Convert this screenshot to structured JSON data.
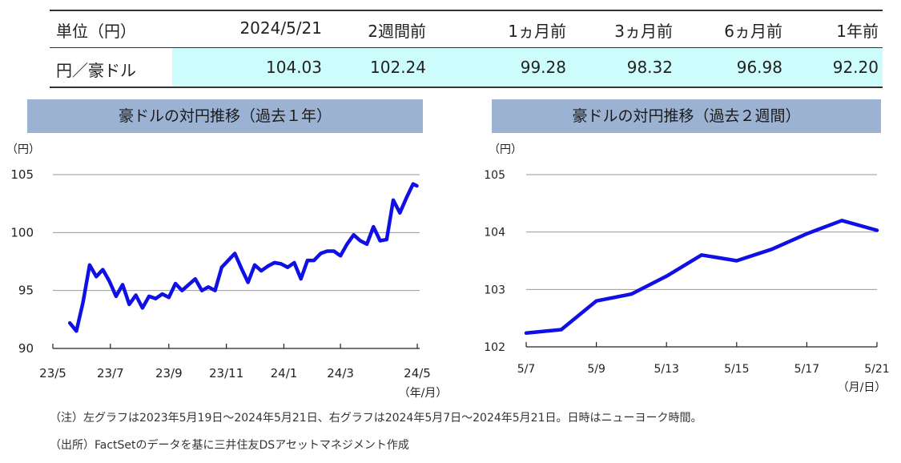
{
  "table": {
    "headers": [
      "単位（円）",
      "2024/5/21",
      "2週間前",
      "1ヵ月前",
      "3ヵ月前",
      "6ヵ月前",
      "1年前"
    ],
    "row_label": "円／豪ドル",
    "values": [
      "104.03",
      "102.24",
      "99.28",
      "98.32",
      "96.98",
      "92.20"
    ]
  },
  "colors": {
    "series": "#1010e6",
    "banner": "#9cb2d3",
    "highlight": "#ccfcfc",
    "grid": "#9a9a9a"
  },
  "chart_data": [
    {
      "type": "line",
      "title": "豪ドルの対円推移（過去１年）",
      "yunit": "（円）",
      "xunit": "（年/月）",
      "ylim": [
        90,
        105
      ],
      "yticks": [
        "90",
        "95",
        "100",
        "105"
      ],
      "xticks": [
        "23/5",
        "23/7",
        "23/9",
        "23/11",
        "24/1",
        "24/3",
        "24/5"
      ],
      "grid": true,
      "series": [
        {
          "x": [
            "2023-05-19",
            "2023-05-26",
            "2023-06-02",
            "2023-06-09",
            "2023-06-16",
            "2023-06-23",
            "2023-06-30",
            "2023-07-07",
            "2023-07-14",
            "2023-07-21",
            "2023-07-28",
            "2023-08-04",
            "2023-08-11",
            "2023-08-18",
            "2023-08-25",
            "2023-09-01",
            "2023-09-08",
            "2023-09-15",
            "2023-09-22",
            "2023-09-29",
            "2023-10-06",
            "2023-10-13",
            "2023-10-20",
            "2023-10-27",
            "2023-11-03",
            "2023-11-10",
            "2023-11-17",
            "2023-11-24",
            "2023-12-01",
            "2023-12-08",
            "2023-12-15",
            "2023-12-22",
            "2023-12-29",
            "2024-01-05",
            "2024-01-12",
            "2024-01-19",
            "2024-01-26",
            "2024-02-02",
            "2024-02-09",
            "2024-02-16",
            "2024-02-23",
            "2024-03-01",
            "2024-03-08",
            "2024-03-15",
            "2024-03-22",
            "2024-03-29",
            "2024-04-05",
            "2024-04-12",
            "2024-04-19",
            "2024-04-26",
            "2024-05-03",
            "2024-05-10",
            "2024-05-17",
            "2024-05-21"
          ],
          "values": [
            92.2,
            91.5,
            94.0,
            97.2,
            96.2,
            96.8,
            95.8,
            94.5,
            95.5,
            93.8,
            94.6,
            93.5,
            94.5,
            94.3,
            94.7,
            94.4,
            95.6,
            95.0,
            95.5,
            96.0,
            95.0,
            95.3,
            95.0,
            97.0,
            97.6,
            98.2,
            96.9,
            95.7,
            97.2,
            96.7,
            97.1,
            97.4,
            97.3,
            97.0,
            97.4,
            96.0,
            97.6,
            97.6,
            98.2,
            98.4,
            98.4,
            98.0,
            99.0,
            99.8,
            99.3,
            99.0,
            100.5,
            99.3,
            99.4,
            102.8,
            101.7,
            103.0,
            104.2,
            104.03
          ]
        }
      ]
    },
    {
      "type": "line",
      "title": "豪ドルの対円推移（過去２週間）",
      "yunit": "（円）",
      "xunit": "（月/日）",
      "ylim": [
        102,
        105
      ],
      "yticks": [
        "102",
        "103",
        "104",
        "105"
      ],
      "xticks": [
        "5/7",
        "5/9",
        "5/13",
        "5/15",
        "5/17",
        "5/21"
      ],
      "grid": true,
      "series": [
        {
          "categories": [
            "5/7",
            "5/8",
            "5/9",
            "5/10",
            "5/13",
            "5/14",
            "5/15",
            "5/16",
            "5/17",
            "5/20",
            "5/21"
          ],
          "values": [
            102.24,
            102.3,
            102.8,
            102.92,
            103.23,
            103.6,
            103.5,
            103.7,
            103.97,
            104.2,
            104.03
          ]
        }
      ]
    }
  ],
  "notes": {
    "note1": "（注）左グラフは2023年5月19日～2024年5月21日、右グラフは2024年5月7日～2024年5月21日。日時はニューヨーク時間。",
    "note2": "（出所）FactSetのデータを基に三井住友DSアセットマネジメント作成"
  }
}
